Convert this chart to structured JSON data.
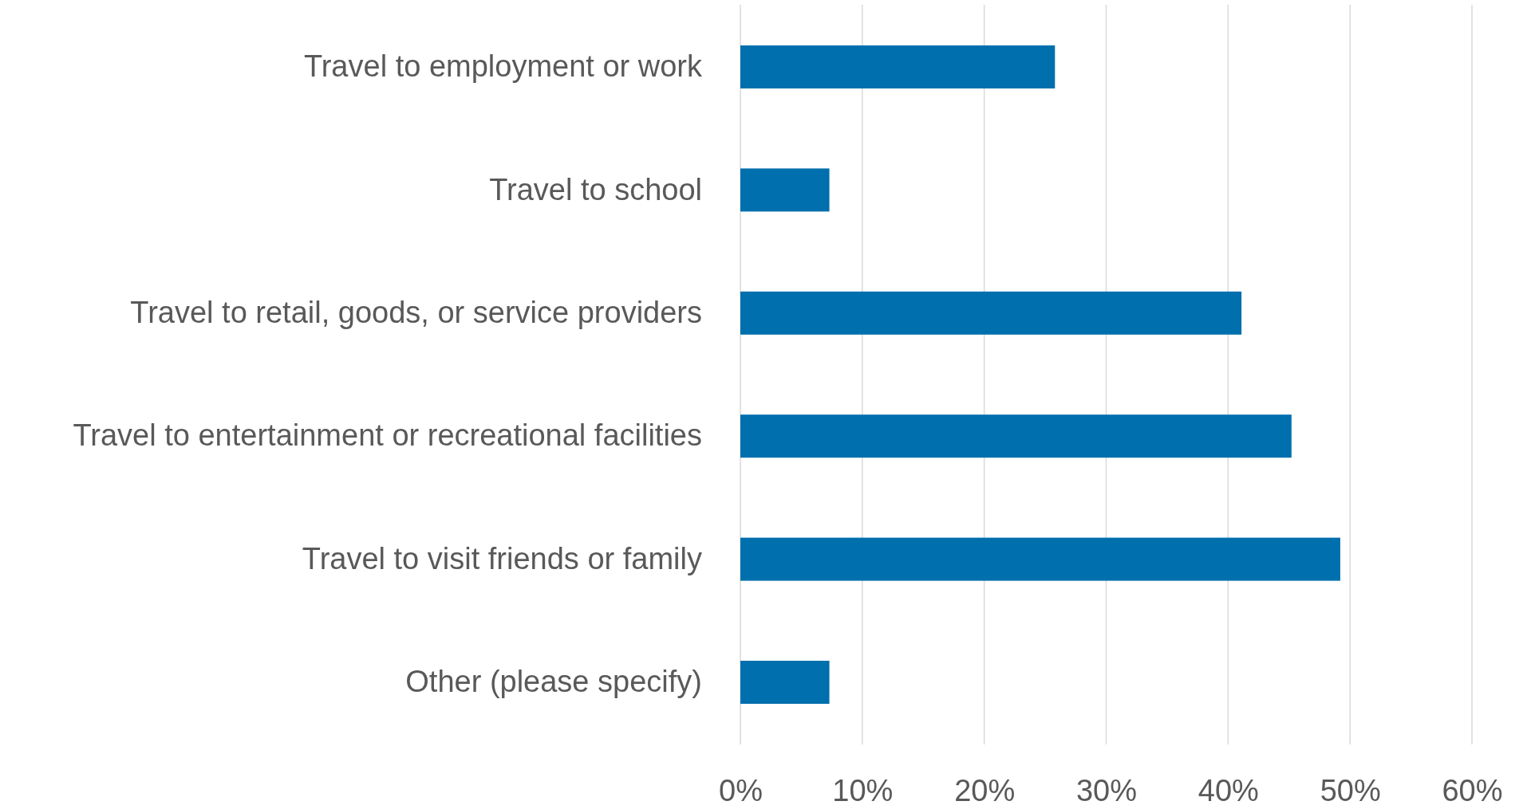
{
  "chart_data": {
    "type": "bar",
    "orientation": "horizontal",
    "categories": [
      "Travel to employment or work",
      "Travel to school",
      "Travel to retail, goods, or service providers",
      "Travel to entertainment or recreational facilities",
      "Travel to visit friends or family",
      "Other (please specify)"
    ],
    "values": [
      25.8,
      7.3,
      41.1,
      45.2,
      49.2,
      7.3
    ],
    "color": "#006fad",
    "xlim": [
      0,
      60
    ],
    "xticks": [
      {
        "value": 0,
        "label": "0%"
      },
      {
        "value": 10,
        "label": "10%"
      },
      {
        "value": 20,
        "label": "20%"
      },
      {
        "value": 30,
        "label": "30%"
      },
      {
        "value": 40,
        "label": "40%"
      },
      {
        "value": 50,
        "label": "50%"
      },
      {
        "value": 60,
        "label": "60%"
      }
    ],
    "grid": "x"
  }
}
